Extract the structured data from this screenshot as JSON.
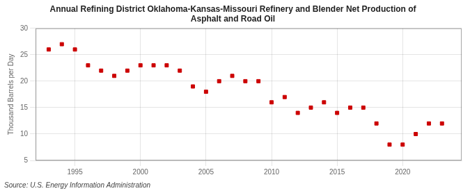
{
  "chart_data": {
    "type": "scatter",
    "title": "Annual Refining District Oklahoma-Kansas-Missouri Refinery and Blender Net Production of\nAsphalt and Road Oil",
    "ylabel": "Thousand Barrels per Day",
    "annotations": [
      "Source: U.S. Energy Information Administration"
    ],
    "x": [
      1993,
      1994,
      1995,
      1996,
      1997,
      1998,
      1999,
      2000,
      2001,
      2002,
      2003,
      2004,
      2005,
      2006,
      2007,
      2008,
      2009,
      2010,
      2011,
      2012,
      2013,
      2014,
      2015,
      2016,
      2017,
      2018,
      2019,
      2020,
      2021,
      2022,
      2023
    ],
    "values": [
      26.0,
      27.0,
      26.0,
      23.0,
      22.0,
      21.0,
      22.0,
      23.0,
      23.0,
      23.0,
      22.0,
      19.0,
      18.0,
      20.0,
      21.0,
      20.0,
      20.0,
      16.0,
      17.0,
      14.0,
      15.0,
      16.0,
      14.0,
      15.0,
      15.0,
      12.0,
      8.0,
      8.0,
      10.0,
      12.0,
      12.0
    ],
    "color": "#cc0000",
    "marker": "square",
    "grid": true,
    "xlim": [
      1992,
      2024.5
    ],
    "xticks": [
      1995,
      2000,
      2005,
      2010,
      2015,
      2020
    ],
    "ylim": [
      5,
      30
    ],
    "yticks": [
      5,
      10,
      15,
      20,
      25,
      30
    ]
  }
}
